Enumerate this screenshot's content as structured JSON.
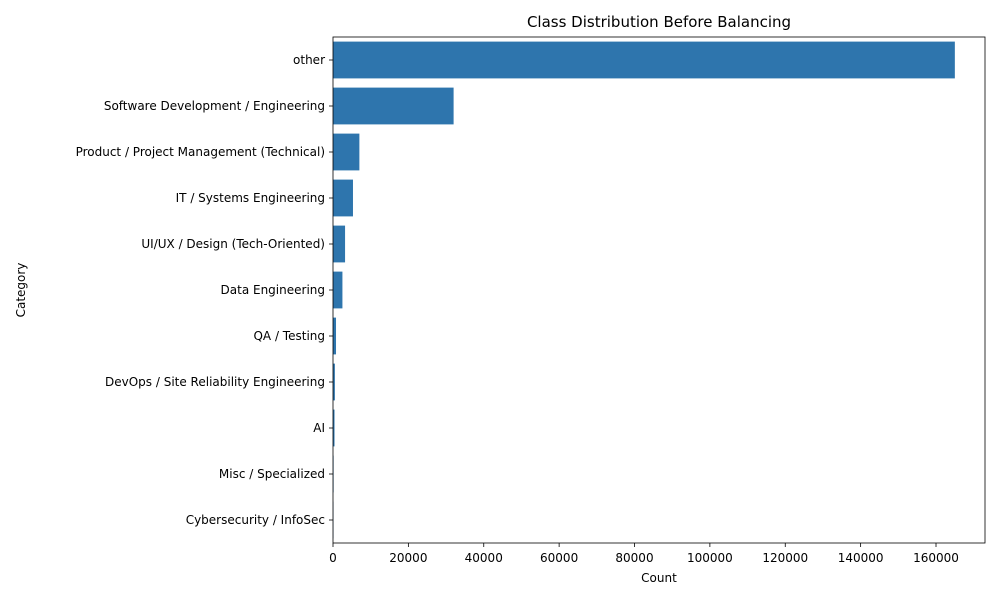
{
  "chart_data": {
    "type": "bar",
    "orientation": "horizontal",
    "title": "Class Distribution Before Balancing",
    "xlabel": "Count",
    "ylabel": "Category",
    "categories": [
      "other",
      "Software Development / Engineering",
      "Product / Project Management (Technical)",
      "IT / Systems Engineering",
      "UI/UX / Design (Tech-Oriented)",
      "Data Engineering",
      "QA / Testing",
      "DevOps / Site Reliability Engineering",
      "AI",
      "Misc / Specialized",
      "Cybersecurity / InfoSec"
    ],
    "values": [
      165000,
      32000,
      7000,
      5300,
      3200,
      2500,
      800,
      500,
      400,
      150,
      100
    ],
    "xlim": [
      0,
      173000
    ],
    "xticks": [
      0,
      20000,
      40000,
      60000,
      80000,
      100000,
      120000,
      140000,
      160000
    ],
    "bar_color": "#2e75ad",
    "grid": false,
    "legend": "none"
  }
}
